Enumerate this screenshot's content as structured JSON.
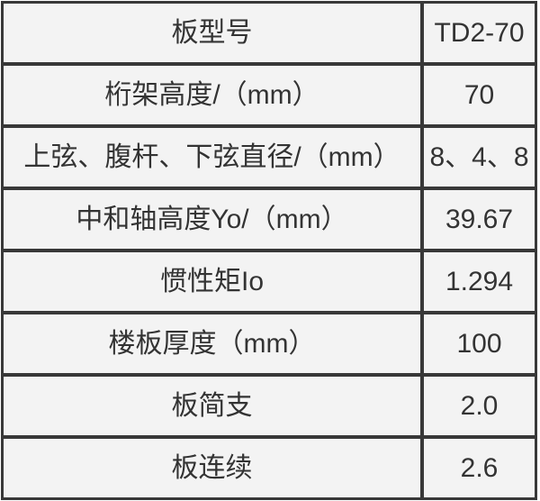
{
  "table": {
    "rows": [
      {
        "label": "板型号",
        "value": "TD2-70"
      },
      {
        "label": "桁架高度/（mm）",
        "value": "70"
      },
      {
        "label": "上弦、腹杆、下弦直径/（mm）",
        "value": "8、4、8"
      },
      {
        "label": "中和轴高度Yo/（mm）",
        "value": "39.67"
      },
      {
        "label": "惯性矩Io",
        "value": "1.294"
      },
      {
        "label": "楼板厚度（mm）",
        "value": "100"
      },
      {
        "label": "板简支",
        "value": "2.0"
      },
      {
        "label": "板连续",
        "value": "2.6"
      }
    ]
  },
  "colors": {
    "border_color": "#383838",
    "cell_background": "#f3f3f3",
    "text_color": "#333333",
    "page_background": "#ffffff"
  }
}
